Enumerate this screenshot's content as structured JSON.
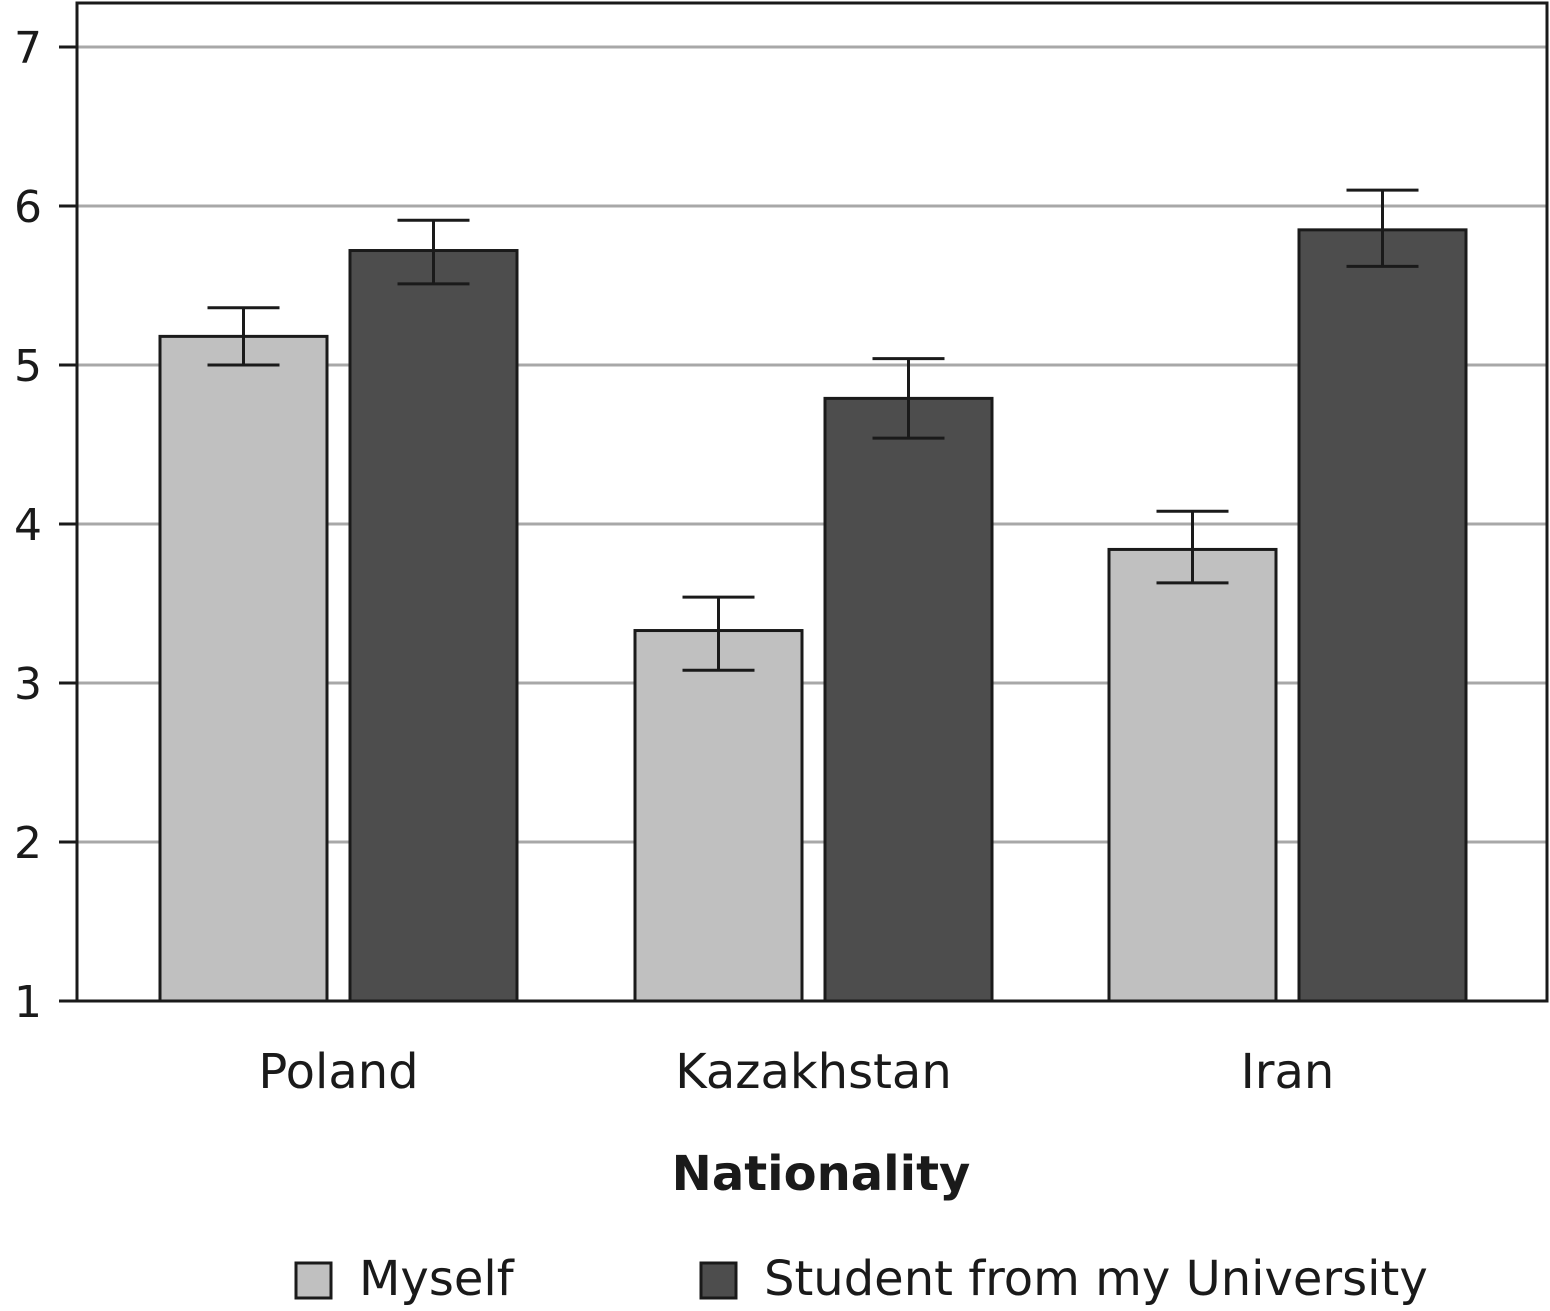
{
  "chart_data": {
    "type": "bar",
    "categories": [
      "Poland",
      "Kazakhstan",
      "Iran"
    ],
    "series": [
      {
        "name": "Myself",
        "color": "#c0c0c0",
        "values": [
          5.18,
          3.33,
          3.84
        ],
        "err_low": [
          5.0,
          3.08,
          3.63
        ],
        "err_high": [
          5.36,
          3.54,
          4.08
        ]
      },
      {
        "name": "Student from my University",
        "color": "#4d4d4d",
        "values": [
          5.72,
          4.79,
          5.85
        ],
        "err_low": [
          5.51,
          4.54,
          5.62
        ],
        "err_high": [
          5.91,
          5.04,
          6.1
        ]
      }
    ],
    "title": "",
    "xlabel": "Nationality",
    "ylabel": "",
    "ylim": [
      1,
      7
    ],
    "yticks": [
      "1",
      "2",
      "3",
      "4",
      "5",
      "6",
      "7"
    ],
    "grid": true,
    "legend_position": "bottom"
  }
}
